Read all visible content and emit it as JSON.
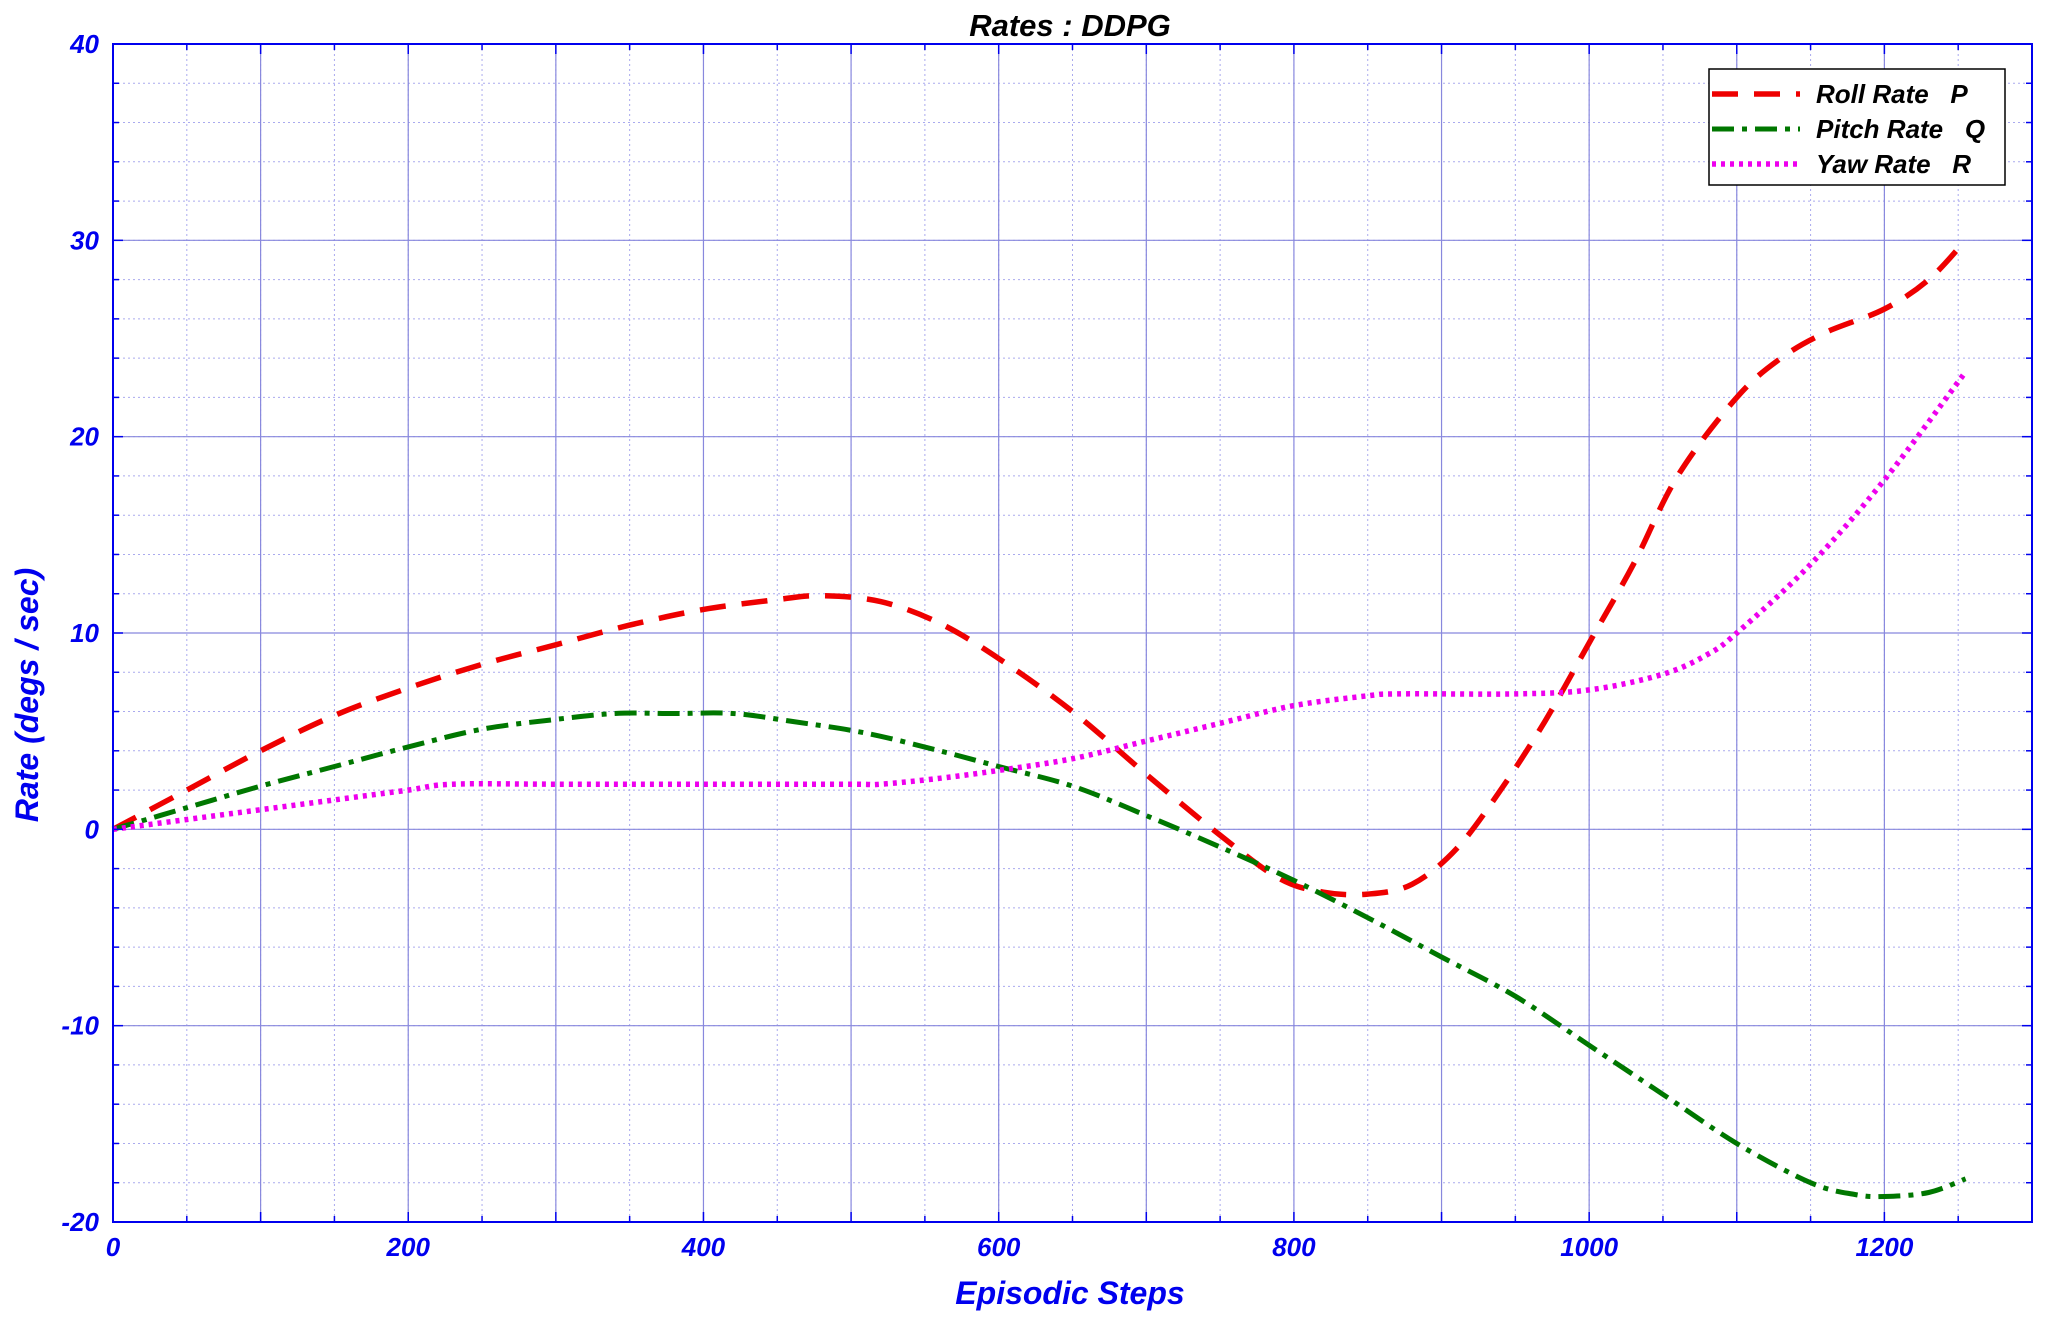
{
  "chart_data": {
    "type": "line",
    "title": "Rates : DDPG",
    "xlabel": "Episodic Steps",
    "ylabel": "Rate (degs / sec)",
    "xlim": [
      0,
      1300
    ],
    "ylim": [
      -20,
      40
    ],
    "xticks": [
      0,
      200,
      400,
      600,
      800,
      1000,
      1200
    ],
    "yticks": [
      -20,
      -10,
      0,
      10,
      20,
      30,
      40
    ],
    "grid": true,
    "legend_position": "top-right",
    "colors": {
      "axis_text": "#0000ee",
      "grid": "#9999ee"
    },
    "series": [
      {
        "name": "Roll Rate   P",
        "color": "#ee0000",
        "dash": "dashed",
        "x": [
          0,
          50,
          100,
          150,
          200,
          250,
          300,
          350,
          400,
          450,
          480,
          520,
          560,
          600,
          650,
          700,
          750,
          790,
          820,
          850,
          880,
          910,
          940,
          970,
          1000,
          1030,
          1060,
          1100,
          1130,
          1160,
          1200,
          1230,
          1255
        ],
        "y": [
          0,
          2,
          4,
          5.8,
          7.2,
          8.4,
          9.4,
          10.4,
          11.2,
          11.7,
          11.9,
          11.6,
          10.5,
          8.7,
          6,
          2.8,
          -0.3,
          -2.5,
          -3.2,
          -3.3,
          -2.8,
          -1,
          2,
          5.5,
          9.5,
          13.5,
          18,
          22,
          24,
          25.3,
          26.5,
          28,
          30
        ]
      },
      {
        "name": "Pitch Rate   Q",
        "color": "#007700",
        "dash": "dashdot",
        "x": [
          0,
          50,
          100,
          150,
          200,
          250,
          300,
          340,
          380,
          420,
          460,
          510,
          560,
          600,
          650,
          700,
          750,
          800,
          850,
          900,
          950,
          1000,
          1050,
          1100,
          1150,
          1180,
          1200,
          1230,
          1255
        ],
        "y": [
          0,
          1.1,
          2.2,
          3.2,
          4.2,
          5.1,
          5.6,
          5.9,
          5.9,
          5.9,
          5.5,
          4.9,
          4,
          3.2,
          2.2,
          0.7,
          -0.9,
          -2.6,
          -4.5,
          -6.5,
          -8.5,
          -11,
          -13.5,
          -16,
          -18,
          -18.6,
          -18.7,
          -18.5,
          -17.8
        ]
      },
      {
        "name": "Yaw Rate   R",
        "color": "#ee00ee",
        "dash": "dotted",
        "x": [
          0,
          50,
          100,
          150,
          200,
          230,
          300,
          400,
          500,
          520,
          560,
          600,
          650,
          700,
          750,
          800,
          850,
          870,
          950,
          1000,
          1050,
          1080,
          1100,
          1150,
          1200,
          1255
        ],
        "y": [
          0,
          0.5,
          1,
          1.5,
          2,
          2.3,
          2.3,
          2.3,
          2.3,
          2.3,
          2.6,
          3,
          3.6,
          4.5,
          5.4,
          6.3,
          6.8,
          6.9,
          6.9,
          7.1,
          7.9,
          8.9,
          10,
          13.5,
          17.8,
          23.3
        ]
      }
    ]
  }
}
